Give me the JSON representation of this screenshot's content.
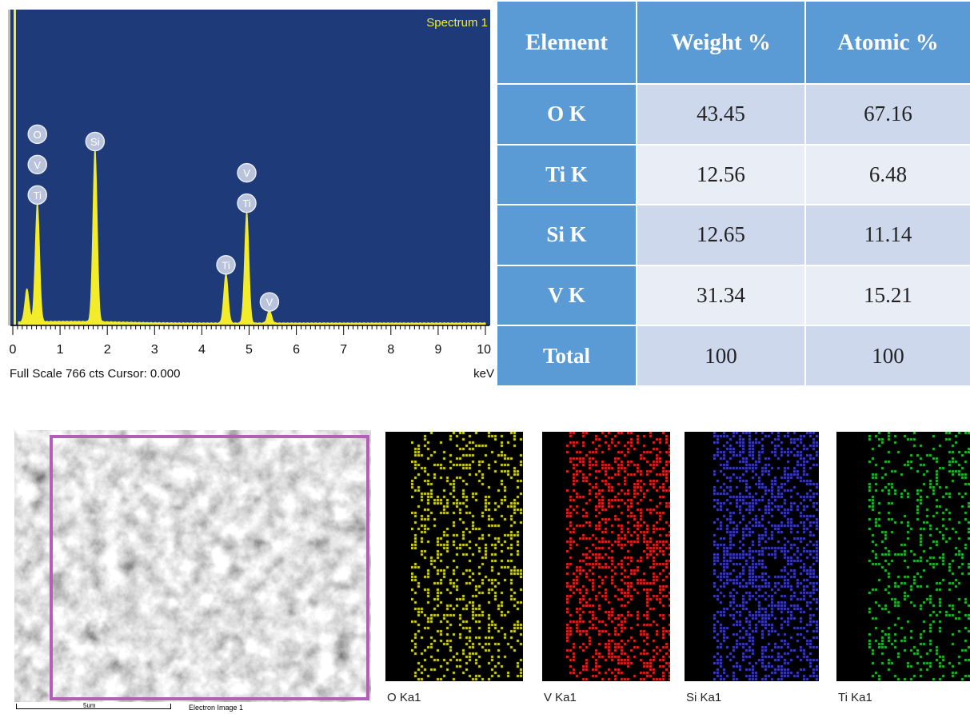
{
  "spectrum": {
    "title": "Spectrum 1",
    "status": "Full Scale 766 cts Cursor: 0.000",
    "x_unit": "keV",
    "colors": {
      "background": "#1e3a78",
      "trace": "#f2ec2a",
      "label_circle": "#b9c4dc"
    }
  },
  "chart_data": [
    {
      "type": "area",
      "title": "Spectrum 1",
      "xlabel": "keV",
      "ylabel": "",
      "xlim": [
        0,
        10
      ],
      "ylim": [
        0,
        766
      ],
      "xticks": [
        "0",
        "1",
        "2",
        "3",
        "4",
        "5",
        "6",
        "7",
        "8",
        "9",
        "10"
      ],
      "peaks": [
        {
          "x": 0.3,
          "y": 80
        },
        {
          "x": 0.52,
          "y": 290
        },
        {
          "x": 1.74,
          "y": 420
        },
        {
          "x": 4.51,
          "y": 120
        },
        {
          "x": 4.95,
          "y": 270
        },
        {
          "x": 5.43,
          "y": 30
        }
      ],
      "annotations": [
        {
          "x": 0.52,
          "labels": [
            "O",
            "V",
            "Ti"
          ]
        },
        {
          "x": 1.74,
          "labels": [
            "Si"
          ]
        },
        {
          "x": 4.51,
          "labels": [
            "Ti"
          ]
        },
        {
          "x": 4.95,
          "labels": [
            "V",
            "Ti"
          ]
        },
        {
          "x": 5.43,
          "labels": [
            "V"
          ]
        }
      ]
    },
    {
      "type": "table",
      "columns": [
        "Element",
        "Weight %",
        "Atomic %"
      ],
      "rows": [
        [
          "O K",
          "43.45",
          "67.16"
        ],
        [
          "Ti K",
          "12.56",
          "6.48"
        ],
        [
          "Si K",
          "12.65",
          "11.14"
        ],
        [
          "V K",
          "31.34",
          "15.21"
        ],
        [
          "Total",
          "100",
          "100"
        ]
      ]
    }
  ],
  "sem": {
    "scale_label": "5um",
    "image_label": "Electron Image 1",
    "frame_color": "#b35fb5"
  },
  "maps": [
    {
      "label": "O Ka1",
      "color": "#d6d626",
      "density": 0.28
    },
    {
      "label": "V Ka1",
      "color": "#e8231f",
      "density": 0.36
    },
    {
      "label": "Si Ka1",
      "color": "#3d3dc4",
      "density": 0.44
    },
    {
      "label": "Ti Ka1",
      "color": "#22bb2e",
      "density": 0.2
    }
  ]
}
